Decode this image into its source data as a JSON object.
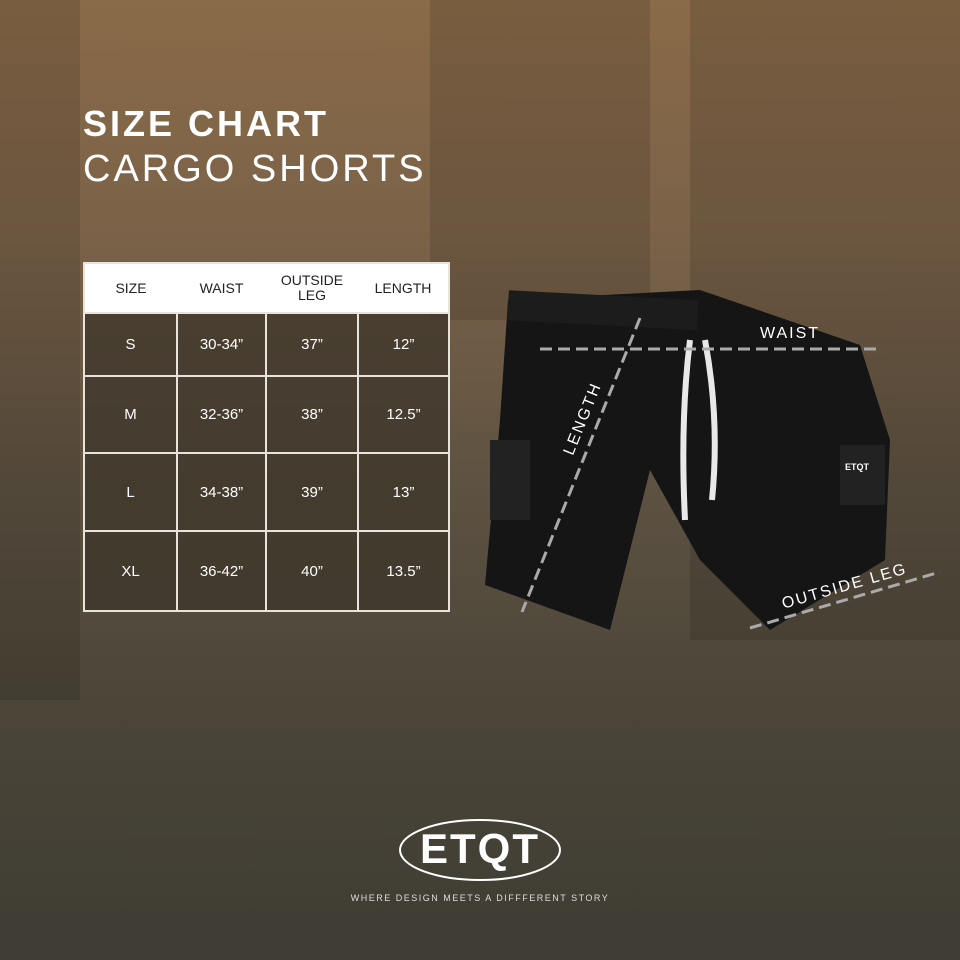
{
  "header": {
    "title": "SIZE CHART",
    "subtitle": "CARGO SHORTS"
  },
  "table": {
    "columns": [
      "SIZE",
      "WAIST",
      "OUTSIDE LEG",
      "LENGTH"
    ],
    "rows": [
      [
        "S",
        "30-34”",
        "37”",
        "12”"
      ],
      [
        "M",
        "32-36”",
        "38”",
        "12.5”"
      ],
      [
        "L",
        "34-38”",
        "39”",
        "13”"
      ],
      [
        "XL",
        "36-42”",
        "40”",
        "13.5”"
      ]
    ]
  },
  "diagram": {
    "waist_label": "WAIST",
    "length_label": "LENGTH",
    "outside_leg_label": "OUTSIDE LEG",
    "shorts_patch": "ETQT"
  },
  "brand": {
    "logo": "ETQT",
    "tagline": "WHERE DESIGN MEETS A DIFFFERENT STORY"
  }
}
